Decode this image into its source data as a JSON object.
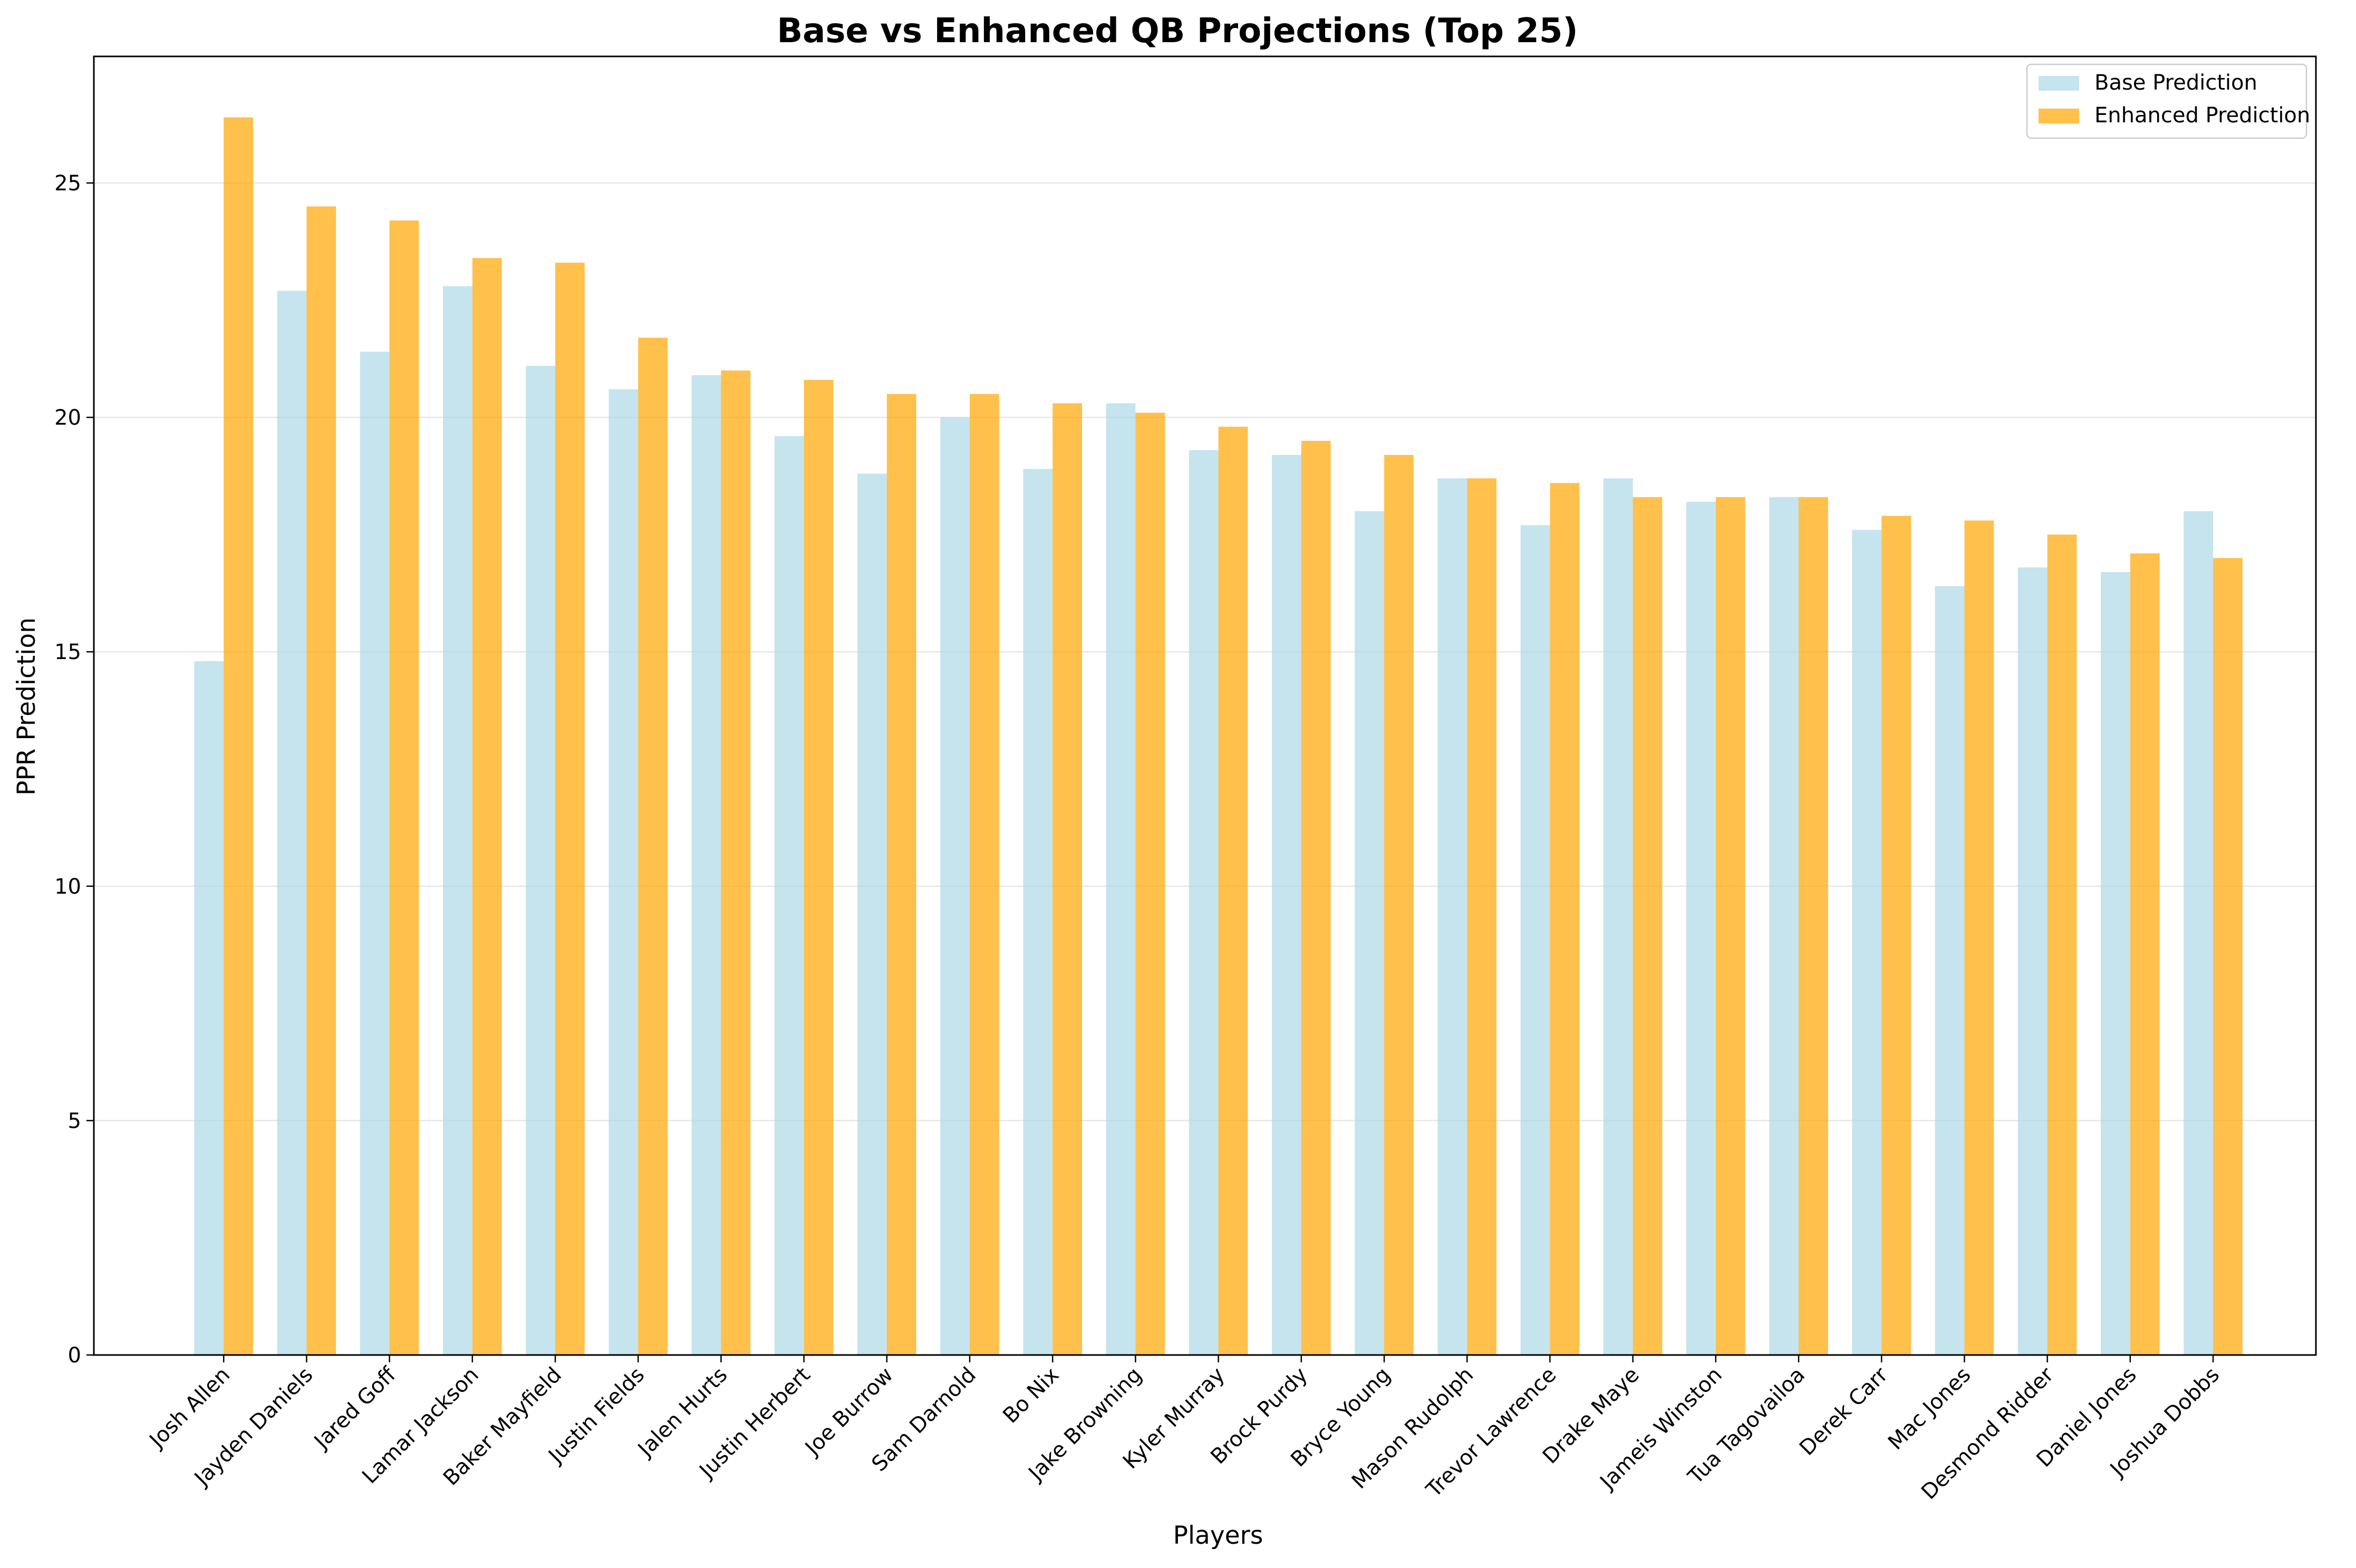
{
  "chart_data": {
    "type": "bar",
    "title": "Base vs Enhanced QB Projections (Top 25)",
    "xlabel": "Players",
    "ylabel": "PPR Prediction",
    "ylim": [
      0,
      27.7
    ],
    "yticks": [
      0,
      5,
      10,
      15,
      20,
      25
    ],
    "grid": "y",
    "legend_position": "top-right",
    "categories": [
      "Josh Allen",
      "Jayden Daniels",
      "Jared Goff",
      "Lamar Jackson",
      "Baker Mayfield",
      "Justin Fields",
      "Jalen Hurts",
      "Justin Herbert",
      "Joe Burrow",
      "Sam Darnold",
      "Bo Nix",
      "Jake Browning",
      "Kyler Murray",
      "Brock Purdy",
      "Bryce Young",
      "Mason Rudolph",
      "Trevor Lawrence",
      "Drake Maye",
      "Jameis Winston",
      "Tua Tagovailoa",
      "Derek Carr",
      "Mac Jones",
      "Desmond Ridder",
      "Daniel Jones",
      "Joshua Dobbs"
    ],
    "series": [
      {
        "name": "Base Prediction",
        "color": "#add8e6",
        "values": [
          14.8,
          22.7,
          21.4,
          22.8,
          21.1,
          20.6,
          20.9,
          19.6,
          18.8,
          20.0,
          18.9,
          20.3,
          19.3,
          19.2,
          18.0,
          18.7,
          17.7,
          18.7,
          18.2,
          18.3,
          17.6,
          16.4,
          16.8,
          16.7,
          18.0
        ]
      },
      {
        "name": "Enhanced Prediction",
        "color": "#ffa500",
        "values": [
          26.4,
          24.5,
          24.2,
          23.4,
          23.3,
          21.7,
          21.0,
          20.8,
          20.5,
          20.5,
          20.3,
          20.1,
          19.8,
          19.5,
          19.2,
          18.7,
          18.6,
          18.3,
          18.3,
          18.3,
          17.9,
          17.8,
          17.5,
          17.1,
          17.0
        ]
      }
    ]
  }
}
